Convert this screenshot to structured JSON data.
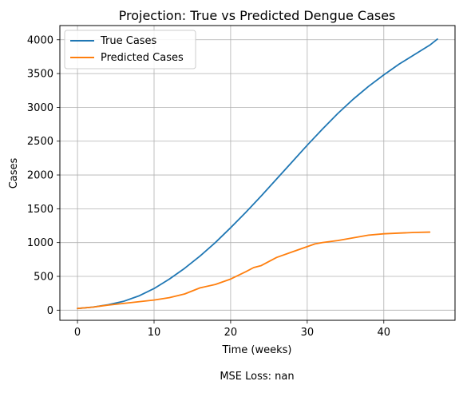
{
  "figure": {
    "footer_text": "MSE Loss: nan"
  },
  "chart_data": {
    "type": "line",
    "title": "Projection: True vs Predicted Dengue Cases",
    "xlabel": "Time (weeks)",
    "ylabel": "Cases",
    "xlim": [
      -2.3,
      49.3
    ],
    "ylim": [
      -150,
      4210
    ],
    "xticks": [
      0,
      10,
      20,
      30,
      40
    ],
    "yticks": [
      0,
      500,
      1000,
      1500,
      2000,
      2500,
      3000,
      3500,
      4000
    ],
    "grid": true,
    "legend_position": "upper left",
    "series": [
      {
        "name": "True Cases",
        "color": "#1f77b4",
        "x": [
          0,
          2,
          4,
          6,
          8,
          10,
          12,
          14,
          16,
          18,
          20,
          22,
          24,
          26,
          28,
          30,
          32,
          34,
          36,
          38,
          40,
          42,
          44,
          46,
          47
        ],
        "y": [
          25,
          45,
          80,
          130,
          210,
          320,
          460,
          620,
          800,
          1000,
          1220,
          1450,
          1690,
          1940,
          2190,
          2440,
          2680,
          2910,
          3120,
          3310,
          3480,
          3640,
          3780,
          3920,
          4010
        ]
      },
      {
        "name": "Predicted Cases",
        "color": "#ff7f0e",
        "x": [
          0,
          2,
          4,
          6,
          8,
          10,
          12,
          14,
          16,
          18,
          20,
          22,
          23,
          24,
          26,
          28,
          30,
          31,
          32,
          34,
          36,
          38,
          40,
          42,
          44,
          46
        ],
        "y": [
          25,
          45,
          75,
          100,
          125,
          150,
          185,
          240,
          330,
          380,
          460,
          570,
          630,
          660,
          780,
          860,
          940,
          980,
          1000,
          1030,
          1070,
          1110,
          1130,
          1140,
          1150,
          1155
        ]
      }
    ]
  }
}
